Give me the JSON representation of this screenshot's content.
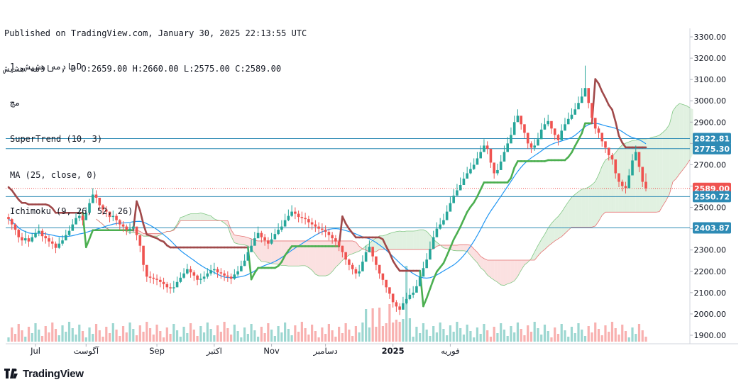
{
  "header": {
    "published": "Published on TradingView.com, January 30, 2025 22:13:55 UTC",
    "symbol_line": "نادمه هشیش , D O:2659.00 H:2660.00 L:2575.00 C:2589.00"
  },
  "legend": {
    "symbol": "نادمه هشیش, 1D",
    "exchange": "مچ",
    "indicator_1": "SuperTrend (10, 3)",
    "indicator_2": "MA (25, close, 0)",
    "indicator_3": "Ichimoku (9, 26, 52, 26)"
  },
  "footer": {
    "brand": "TradingView"
  },
  "colors": {
    "up": "#26a69a",
    "down": "#ef5350",
    "supertrend_up": "#4caf50",
    "supertrend_down": "#a0494a",
    "ma": "#2196f3",
    "cloud_bull": "#c8e6c9",
    "cloud_bear": "#f8c8c8",
    "hline": "#2e8bb5"
  },
  "chart_data": {
    "type": "candlestick",
    "y_axis_ticks": [
      "3300.00",
      "3200.00",
      "3100.00",
      "3000.00",
      "2900.00",
      "2800.00",
      "2700.00",
      "2600.00",
      "2500.00",
      "2400.00",
      "2300.00",
      "2200.00",
      "2100.00",
      "2000.00",
      "1900.00"
    ],
    "x_axis_labels": [
      "Jul",
      "آگوست",
      "Sep",
      "اکتبر",
      "Nov",
      "دسامبر",
      "2025",
      "فوریه"
    ],
    "ylim": [
      1870,
      3340
    ],
    "close_price": 2589.0,
    "price_tags": [
      {
        "label": "2822.81",
        "value": 2822.81
      },
      {
        "label": "2775.30",
        "value": 2775.3
      },
      {
        "label": "2589.00",
        "value": 2589.0,
        "kind": "last"
      },
      {
        "label": "2550.72",
        "value": 2550.72
      },
      {
        "label": "2403.87",
        "value": 2403.87
      }
    ],
    "horizontal_lines": [
      2822.81,
      2775.3,
      2550.72,
      2403.87
    ],
    "candles_close": [
      2445,
      2420,
      2395,
      2360,
      2345,
      2355,
      2340,
      2360,
      2380,
      2390,
      2365,
      2355,
      2340,
      2330,
      2310,
      2330,
      2345,
      2370,
      2390,
      2420,
      2450,
      2460,
      2440,
      2475,
      2520,
      2560,
      2545,
      2510,
      2490,
      2480,
      2455,
      2460,
      2440,
      2420,
      2410,
      2395,
      2400,
      2410,
      2370,
      2320,
      2230,
      2175,
      2170,
      2165,
      2160,
      2150,
      2140,
      2125,
      2120,
      2125,
      2150,
      2170,
      2190,
      2210,
      2195,
      2180,
      2160,
      2165,
      2175,
      2190,
      2205,
      2210,
      2195,
      2190,
      2180,
      2175,
      2165,
      2185,
      2200,
      2225,
      2250,
      2290,
      2320,
      2355,
      2380,
      2360,
      2345,
      2330,
      2350,
      2375,
      2395,
      2410,
      2440,
      2460,
      2480,
      2470,
      2455,
      2450,
      2445,
      2430,
      2420,
      2410,
      2400,
      2395,
      2385,
      2370,
      2355,
      2340,
      2320,
      2290,
      2255,
      2230,
      2210,
      2190,
      2200,
      2245,
      2290,
      2315,
      2270,
      2230,
      2190,
      2160,
      2125,
      2095,
      2055,
      2035,
      2020,
      2050,
      2070,
      2090,
      2100,
      2130,
      2175,
      2215,
      2255,
      2305,
      2360,
      2400,
      2420,
      2440,
      2480,
      2520,
      2555,
      2580,
      2605,
      2635,
      2660,
      2680,
      2700,
      2730,
      2760,
      2790,
      2775,
      2710,
      2660,
      2675,
      2715,
      2760,
      2800,
      2840,
      2900,
      2930,
      2890,
      2850,
      2800,
      2780,
      2790,
      2820,
      2865,
      2890,
      2905,
      2870,
      2840,
      2815,
      2860,
      2890,
      2915,
      2935,
      2960,
      2990,
      3020,
      3060,
      2990,
      2920,
      2870,
      2850,
      2810,
      2780,
      2745,
      2725,
      2660,
      2620,
      2600,
      2590,
      2650,
      2720,
      2760,
      2690,
      2620,
      2589
    ],
    "candles_high": [
      2470,
      2450,
      2425,
      2400,
      2380,
      2390,
      2370,
      2380,
      2400,
      2420,
      2400,
      2385,
      2370,
      2360,
      2340,
      2360,
      2370,
      2395,
      2415,
      2445,
      2475,
      2490,
      2470,
      2500,
      2540,
      2590,
      2580,
      2540,
      2515,
      2505,
      2480,
      2485,
      2470,
      2445,
      2435,
      2420,
      2425,
      2435,
      2400,
      2350,
      2270,
      2205,
      2200,
      2190,
      2185,
      2175,
      2170,
      2150,
      2145,
      2155,
      2175,
      2195,
      2215,
      2235,
      2225,
      2205,
      2185,
      2190,
      2200,
      2215,
      2230,
      2240,
      2220,
      2215,
      2205,
      2200,
      2190,
      2210,
      2225,
      2250,
      2280,
      2320,
      2350,
      2385,
      2410,
      2390,
      2375,
      2360,
      2380,
      2400,
      2425,
      2440,
      2470,
      2490,
      2510,
      2500,
      2485,
      2480,
      2475,
      2460,
      2450,
      2440,
      2430,
      2425,
      2415,
      2400,
      2385,
      2370,
      2350,
      2320,
      2285,
      2260,
      2240,
      2220,
      2230,
      2275,
      2320,
      2345,
      2300,
      2260,
      2220,
      2190,
      2155,
      2125,
      2085,
      2065,
      2050,
      2080,
      2100,
      2120,
      2130,
      2160,
      2205,
      2245,
      2285,
      2340,
      2390,
      2430,
      2450,
      2470,
      2510,
      2550,
      2585,
      2610,
      2640,
      2665,
      2690,
      2710,
      2730,
      2760,
      2790,
      2820,
      2810,
      2745,
      2690,
      2705,
      2745,
      2790,
      2830,
      2875,
      2930,
      2960,
      2920,
      2880,
      2830,
      2810,
      2820,
      2850,
      2895,
      2920,
      2935,
      2900,
      2870,
      2845,
      2890,
      2920,
      2945,
      2965,
      2990,
      3020,
      3060,
      3165,
      3030,
      2950,
      2900,
      2880,
      2840,
      2810,
      2775,
      2755,
      2695,
      2650,
      2630,
      2620,
      2680,
      2750,
      2790,
      2720,
      2660,
      2660
    ],
    "candles_low": [
      2420,
      2395,
      2370,
      2335,
      2320,
      2330,
      2315,
      2335,
      2355,
      2365,
      2340,
      2330,
      2315,
      2305,
      2285,
      2305,
      2320,
      2345,
      2365,
      2395,
      2425,
      2435,
      2415,
      2450,
      2495,
      2535,
      2520,
      2485,
      2465,
      2455,
      2430,
      2435,
      2415,
      2395,
      2385,
      2370,
      2375,
      2385,
      2345,
      2290,
      2200,
      2150,
      2145,
      2140,
      2135,
      2125,
      2115,
      2100,
      2095,
      2100,
      2125,
      2145,
      2165,
      2185,
      2170,
      2155,
      2135,
      2140,
      2150,
      2165,
      2180,
      2185,
      2170,
      2165,
      2155,
      2150,
      2140,
      2160,
      2175,
      2200,
      2225,
      2265,
      2295,
      2330,
      2355,
      2335,
      2320,
      2305,
      2325,
      2350,
      2370,
      2385,
      2415,
      2435,
      2455,
      2445,
      2430,
      2425,
      2420,
      2405,
      2395,
      2385,
      2375,
      2370,
      2360,
      2345,
      2330,
      2315,
      2295,
      2265,
      2230,
      2205,
      2185,
      2165,
      2175,
      2220,
      2265,
      2290,
      2245,
      2205,
      2165,
      2135,
      2100,
      2070,
      2030,
      2010,
      1995,
      2025,
      2045,
      2065,
      2075,
      2105,
      2150,
      2190,
      2230,
      2280,
      2335,
      2375,
      2395,
      2415,
      2455,
      2495,
      2530,
      2555,
      2580,
      2610,
      2635,
      2655,
      2675,
      2705,
      2735,
      2765,
      2750,
      2685,
      2635,
      2650,
      2690,
      2735,
      2775,
      2815,
      2875,
      2905,
      2865,
      2825,
      2775,
      2755,
      2765,
      2795,
      2840,
      2865,
      2880,
      2845,
      2815,
      2790,
      2835,
      2865,
      2890,
      2910,
      2935,
      2965,
      2995,
      3035,
      2965,
      2895,
      2845,
      2825,
      2785,
      2755,
      2720,
      2700,
      2635,
      2595,
      2575,
      2565,
      2625,
      2695,
      2735,
      2665,
      2595,
      2575
    ]
  }
}
